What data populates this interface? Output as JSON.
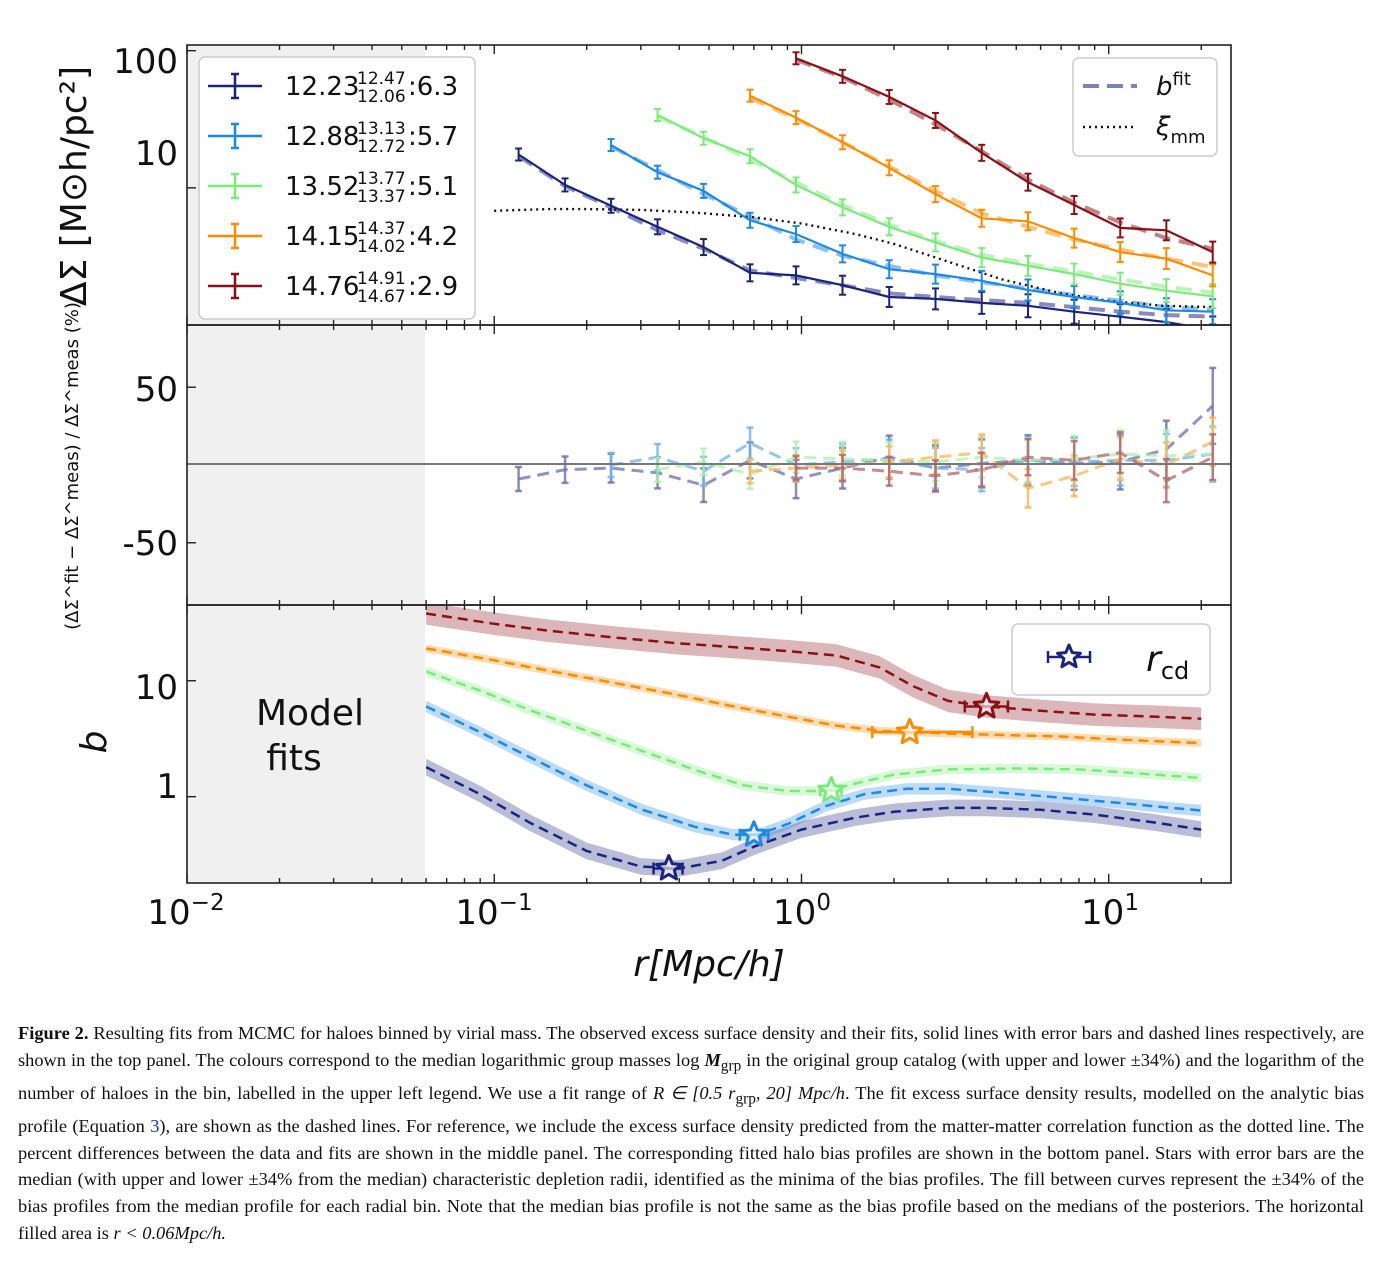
{
  "chart_data": [
    {
      "panel": "top",
      "type": "line",
      "xscale": "log",
      "yscale": "log",
      "xlim": [
        0.01,
        25
      ],
      "ylim": [
        1.0,
        110
      ],
      "ylabel": "ΔΣ [M⊙h/pc²]",
      "yticks": [
        "100",
        "10"
      ],
      "shaded_region_label": "",
      "legend_top_right": [
        {
          "name": "b",
          "sup": "fit",
          "style": "dashed",
          "color": "#7d82b8"
        },
        {
          "name": "ξ",
          "sub": "mm",
          "style": "dotted",
          "color": "#111111"
        }
      ],
      "series": [
        {
          "name": "12.23",
          "upper": "12.47",
          "lower": "12.06",
          "count": "6.3",
          "color": "#1a237e",
          "x": [
            0.12,
            0.17,
            0.24,
            0.34,
            0.48,
            0.68,
            0.96,
            1.36,
            1.93,
            2.73,
            3.86,
            5.46,
            7.72,
            10.9,
            15.4,
            21.8
          ],
          "y": [
            17.5,
            10.5,
            7.4,
            5.2,
            3.7,
            2.4,
            2.3,
            1.95,
            1.6,
            1.55,
            1.45,
            1.38,
            1.25,
            1.15,
            1.05,
            0.92
          ],
          "fit": [
            17.0,
            10.3,
            7.2,
            4.9,
            3.6,
            2.5,
            2.2,
            1.95,
            1.7,
            1.6,
            1.52,
            1.45,
            1.35,
            1.25,
            1.18,
            1.15
          ]
        },
        {
          "name": "12.88",
          "upper": "13.13",
          "lower": "12.72",
          "count": "5.7",
          "color": "#1e88e5",
          "x": [
            0.24,
            0.34,
            0.48,
            0.68,
            0.96,
            1.36,
            1.93,
            2.73,
            3.86,
            5.46,
            7.72,
            10.9,
            15.4,
            21.8
          ],
          "y": [
            20.5,
            13.0,
            9.5,
            5.8,
            4.6,
            3.3,
            2.55,
            2.35,
            2.1,
            1.8,
            1.6,
            1.45,
            1.28,
            1.25
          ],
          "fit": [
            20.0,
            13.5,
            9.0,
            6.2,
            4.2,
            3.2,
            2.7,
            2.3,
            2.05,
            1.85,
            1.65,
            1.5,
            1.35,
            1.3
          ]
        },
        {
          "name": "13.52",
          "upper": "13.77",
          "lower": "13.37",
          "count": "5.1",
          "color": "#7bea7b",
          "x": [
            0.34,
            0.48,
            0.68,
            0.96,
            1.36,
            1.93,
            2.73,
            3.86,
            5.46,
            7.72,
            10.9,
            15.4,
            21.8
          ],
          "y": [
            34.0,
            23.0,
            17.0,
            10.5,
            7.2,
            5.2,
            4.0,
            3.1,
            2.7,
            2.35,
            2.0,
            1.78,
            1.62
          ],
          "fit": [
            33.0,
            23.5,
            16.0,
            11.0,
            7.5,
            5.4,
            4.1,
            3.25,
            2.8,
            2.45,
            2.15,
            1.9,
            1.72
          ]
        },
        {
          "name": "14.15",
          "upper": "14.37",
          "lower": "14.02",
          "count": "4.2",
          "color": "#fb8c00",
          "x": [
            0.68,
            0.96,
            1.36,
            1.93,
            2.73,
            3.86,
            5.46,
            7.72,
            10.9,
            15.4,
            21.8
          ],
          "y": [
            47.0,
            32.5,
            21.5,
            14.0,
            9.0,
            6.0,
            5.7,
            4.3,
            3.4,
            3.05,
            2.3
          ],
          "fit": [
            45.0,
            32.0,
            21.5,
            14.3,
            9.5,
            6.5,
            5.2,
            4.2,
            3.55,
            3.05,
            2.65
          ]
        },
        {
          "name": "14.76",
          "upper": "14.91",
          "lower": "14.67",
          "count": "2.9",
          "color": "#8b1016",
          "x": [
            0.96,
            1.36,
            1.93,
            2.73,
            3.86,
            5.46,
            7.72,
            10.9,
            15.4,
            21.8
          ],
          "y": [
            88.0,
            65.0,
            46.0,
            31.0,
            18.0,
            11.0,
            7.5,
            5.1,
            4.9,
            3.4
          ],
          "fit": [
            86.0,
            64.0,
            44.0,
            29.0,
            18.5,
            11.5,
            7.8,
            5.6,
            4.3,
            3.6
          ]
        }
      ],
      "dotted_xi_mm": {
        "x": [
          0.1,
          0.15,
          0.2,
          0.3,
          0.45,
          0.7,
          1.0,
          1.5,
          2.0,
          3.0,
          4.5,
          7.0,
          10.0,
          15.0,
          21.8
        ],
        "y": [
          6.8,
          7.0,
          7.0,
          6.9,
          6.6,
          6.1,
          5.5,
          4.6,
          3.9,
          2.9,
          2.15,
          1.7,
          1.5,
          1.38,
          1.35
        ]
      }
    },
    {
      "panel": "middle",
      "type": "line",
      "xscale": "log",
      "yscale": "linear",
      "xlim": [
        0.01,
        25
      ],
      "ylim": [
        -90,
        90
      ],
      "ylabel": "(ΔΣ^fit − ΔΣ^meas) / ΔΣ^meas (%)",
      "yticks": [
        "50",
        "-50"
      ],
      "series": [
        {
          "name": "12.23",
          "color": "#1a237e",
          "x": [
            0.12,
            0.17,
            0.24,
            0.34,
            0.48,
            0.68,
            0.96,
            1.36,
            1.93,
            2.73,
            3.86,
            5.46,
            7.72,
            10.9,
            15.4,
            21.8
          ],
          "y": [
            -9,
            -3,
            -2,
            -5,
            -13,
            3,
            -9,
            -2,
            5,
            -2,
            1,
            3,
            1,
            2,
            10,
            38
          ]
        },
        {
          "name": "12.88",
          "color": "#1e88e5",
          "x": [
            0.24,
            0.34,
            0.48,
            0.68,
            0.96,
            1.36,
            1.93,
            2.73,
            3.86,
            5.46,
            7.72,
            10.9,
            15.4,
            21.8
          ],
          "y": [
            0,
            5,
            -4,
            14,
            0,
            2,
            4,
            -2,
            -3,
            3,
            2,
            3,
            3,
            7
          ]
        },
        {
          "name": "13.52",
          "color": "#7bea7b",
          "x": [
            0.34,
            0.48,
            0.68,
            0.96,
            1.36,
            1.93,
            2.73,
            3.86,
            5.46,
            7.72,
            10.9,
            15.4,
            21.8
          ],
          "y": [
            -3,
            2,
            -6,
            5,
            4,
            3,
            2,
            5,
            3,
            4,
            7,
            6,
            7
          ]
        },
        {
          "name": "14.15",
          "color": "#fb8c00",
          "x": [
            0.68,
            0.96,
            1.36,
            1.93,
            2.73,
            3.86,
            5.46,
            7.72,
            10.9,
            15.4,
            21.8
          ],
          "y": [
            -4,
            -2,
            0,
            2,
            5,
            8,
            -15,
            -7,
            4,
            0,
            15
          ]
        },
        {
          "name": "14.76",
          "color": "#8b1016",
          "x": [
            0.96,
            1.36,
            1.93,
            2.73,
            3.86,
            5.46,
            7.72,
            10.9,
            15.4,
            21.8
          ],
          "y": [
            -2,
            -2,
            -4,
            -7,
            -3,
            5,
            3,
            8,
            -10,
            5
          ]
        }
      ]
    },
    {
      "panel": "bottom",
      "type": "line",
      "xscale": "log",
      "yscale": "log",
      "xlim": [
        0.01,
        25
      ],
      "ylim": [
        0.18,
        45
      ],
      "ylabel": "b",
      "yticks": [
        "10",
        "1"
      ],
      "xlabel": "r[Mpc/h]",
      "xticks": [
        {
          "base": "10",
          "exp": "−2"
        },
        {
          "base": "10",
          "exp": "−1"
        },
        {
          "base": "10",
          "exp": "0"
        },
        {
          "base": "10",
          "exp": "1"
        }
      ],
      "shaded_region_label": [
        "Model",
        "fits"
      ],
      "shaded_region_xmax": 0.06,
      "legend": {
        "label": "r",
        "sub": "cd",
        "marker": "star"
      },
      "series": [
        {
          "name": "12.23",
          "color": "#1a237e",
          "x": [
            0.06,
            0.09,
            0.13,
            0.2,
            0.3,
            0.4,
            0.55,
            0.7,
            1.0,
            1.5,
            2.0,
            3.0,
            4.0,
            6.0,
            9.0,
            14.0,
            20.0
          ],
          "y": [
            1.8,
            1.05,
            0.6,
            0.34,
            0.25,
            0.24,
            0.28,
            0.37,
            0.52,
            0.66,
            0.74,
            0.8,
            0.8,
            0.77,
            0.7,
            0.6,
            0.52
          ],
          "band_frac": 0.18,
          "rcd": 0.37,
          "rcd_y": 0.24,
          "rcd_err": [
            0.33,
            0.41
          ]
        },
        {
          "name": "12.88",
          "color": "#1e88e5",
          "x": [
            0.06,
            0.09,
            0.13,
            0.2,
            0.3,
            0.45,
            0.6,
            0.72,
            0.9,
            1.2,
            1.6,
            2.2,
            3.0,
            4.5,
            7.0,
            11.0,
            16.0,
            20.0
          ],
          "y": [
            6.0,
            3.6,
            2.2,
            1.25,
            0.78,
            0.55,
            0.47,
            0.47,
            0.58,
            0.83,
            1.05,
            1.17,
            1.17,
            1.08,
            0.98,
            0.88,
            0.8,
            0.76
          ],
          "band_frac": 0.12,
          "rcd": 0.7,
          "rcd_y": 0.47,
          "rcd_err": [
            0.63,
            0.78
          ]
        },
        {
          "name": "13.52",
          "color": "#7bea7b",
          "x": [
            0.06,
            0.09,
            0.13,
            0.2,
            0.3,
            0.45,
            0.65,
            0.9,
            1.2,
            1.5,
            2.0,
            3.0,
            5.0,
            8.0,
            12.0,
            20.0
          ],
          "y": [
            12.0,
            8.2,
            5.6,
            3.7,
            2.5,
            1.7,
            1.25,
            1.12,
            1.12,
            1.3,
            1.55,
            1.72,
            1.75,
            1.72,
            1.6,
            1.45
          ],
          "band_frac": 0.1,
          "rcd": 1.25,
          "rcd_y": 1.13,
          "rcd_err": [
            1.15,
            1.35
          ]
        },
        {
          "name": "14.15",
          "color": "#fb8c00",
          "x": [
            0.06,
            0.1,
            0.15,
            0.25,
            0.4,
            0.6,
            0.9,
            1.3,
            1.8,
            2.3,
            3.0,
            4.5,
            7.0,
            11.0,
            20.0
          ],
          "y": [
            19.0,
            15.0,
            12.2,
            9.5,
            7.5,
            6.0,
            4.9,
            4.1,
            3.7,
            3.6,
            3.5,
            3.4,
            3.3,
            3.1,
            2.9
          ],
          "band_frac": 0.08,
          "rcd": 2.25,
          "rcd_y": 3.6,
          "rcd_err": [
            1.7,
            3.6
          ]
        },
        {
          "name": "14.76",
          "color": "#8b1016",
          "x": [
            0.06,
            0.1,
            0.15,
            0.25,
            0.4,
            0.6,
            0.9,
            1.3,
            1.8,
            2.3,
            3.0,
            4.0,
            6.0,
            9.0,
            14.0,
            20.0
          ],
          "y": [
            38.0,
            31.0,
            27.0,
            23.5,
            21.0,
            19.5,
            18.0,
            16.5,
            13.0,
            9.0,
            6.7,
            6.0,
            5.5,
            5.1,
            4.9,
            4.7
          ],
          "band_frac": 0.25,
          "rcd": 4.0,
          "rcd_y": 6.0,
          "rcd_err": [
            3.4,
            4.7
          ]
        }
      ]
    }
  ],
  "caption": {
    "label": "Figure 2.",
    "text1": " Resulting fits from MCMC for haloes binned by virial mass. The observed excess surface density and their fits, solid lines with error bars and dashed lines respectively, are shown in the top panel. The colours correspond to the median logarithmic group masses log ",
    "mgrp": "M",
    "mgrp_sub": "grp",
    "text2": " in the original group catalog (with upper and lower ±34%) and the logarithm of the number of haloes in the bin, labelled in the upper left legend. We use a fit range of ",
    "range": "R ∈ [0.5 r",
    "range_sub": "grp",
    "range_end": ", 20] Mpc/h",
    "text3": ". The fit excess surface density results, modelled on the analytic bias profile (Equation ",
    "eq_ref": "3",
    "text4": "), are shown as the dashed lines. For reference, we include the excess surface density predicted from the matter-matter correlation function as the dotted line. The percent differences between the data and fits are shown in the middle panel. The corresponding fitted halo bias profiles are shown in the bottom panel. Stars with error bars are the median (with upper and lower ±34% from the median) characteristic depletion radii, identified as the minima of the bias profiles. The fill between curves represent the ±34% of the bias profiles from the median profile for each radial bin. Note that the median bias profile is not the same as the bias profile based on the medians of the posteriors. The horizontal filled area is ",
    "last": "r < 0.06Mpc/h."
  }
}
